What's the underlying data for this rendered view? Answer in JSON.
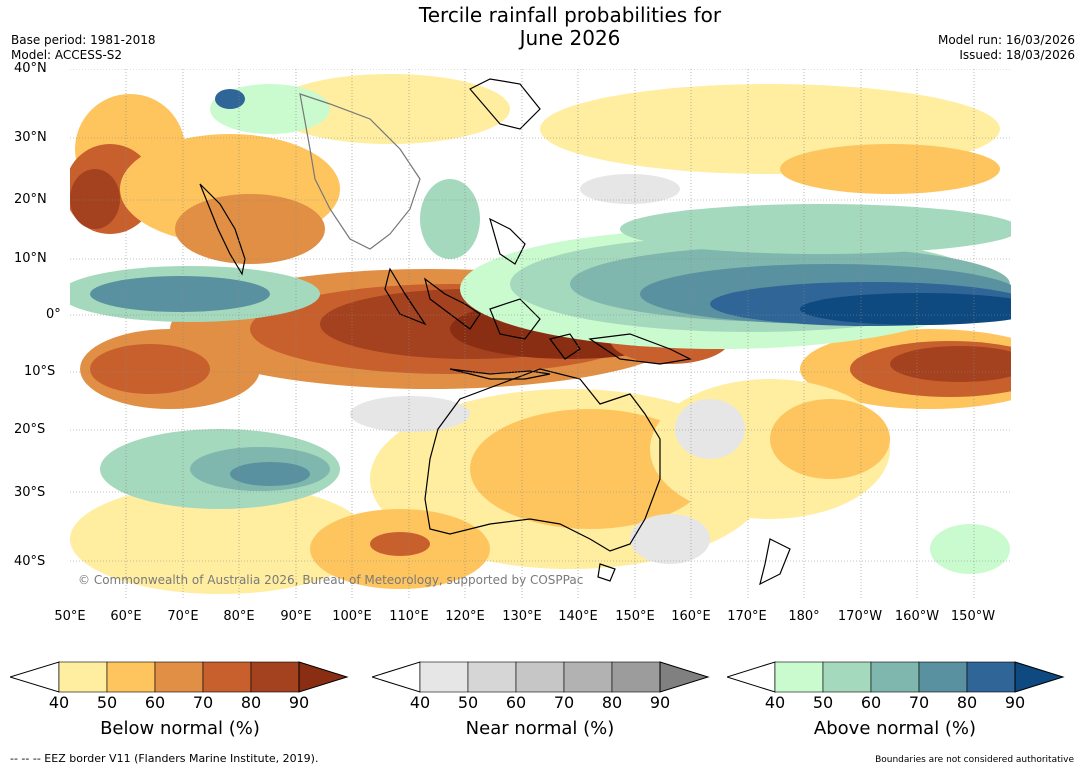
{
  "title_line1": "Tercile rainfall probabilities for",
  "title_line2": "June 2026",
  "base_period": "Base period: 1981-2018",
  "model": "Model: ACCESS-S2",
  "model_run": "Model run: 16/03/2026",
  "issued": "Issued: 18/03/2026",
  "copyright": "© Commonwealth of Australia 2026, Bureau of Meteorology, supported by COSPPac",
  "lat_labels": [
    "40°N",
    "30°N",
    "20°N",
    "10°N",
    "0°",
    "10°S",
    "20°S",
    "30°S",
    "40°S"
  ],
  "lon_labels": [
    "50°E",
    "60°E",
    "70°E",
    "80°E",
    "90°E",
    "100°E",
    "110°E",
    "120°E",
    "130°E",
    "140°E",
    "150°E",
    "160°E",
    "170°E",
    "180°",
    "170°W",
    "160°W",
    "150°W"
  ],
  "colorbars": {
    "below": {
      "title": "Below normal (%)",
      "ticks": [
        "40",
        "50",
        "60",
        "70",
        "80",
        "90"
      ],
      "colors": [
        "#ffeda0",
        "#fec55e",
        "#e08f45",
        "#c8602e",
        "#a4411f",
        "#8a2e13"
      ]
    },
    "near": {
      "title": "Near normal (%)",
      "ticks": [
        "40",
        "50",
        "60",
        "70",
        "80",
        "90"
      ],
      "colors": [
        "#e6e6e6",
        "#d6d6d6",
        "#c6c6c6",
        "#b2b2b2",
        "#9c9c9c",
        "#808080"
      ]
    },
    "above": {
      "title": "Above normal (%)",
      "ticks": [
        "40",
        "50",
        "60",
        "70",
        "80",
        "90"
      ],
      "colors": [
        "#c9fbcf",
        "#a5d9bd",
        "#7fb6ae",
        "#5a91a0",
        "#2f6597",
        "#0e4a80"
      ]
    }
  },
  "footer_left": "--  --  -- EEZ border V11 (Flanders Marine Institute, 2019).",
  "footer_right": "Boundaries are not considered authoritative",
  "colors": {
    "ocean_background": "#ffffff",
    "grid": "#888888",
    "coastline": "#000000"
  }
}
